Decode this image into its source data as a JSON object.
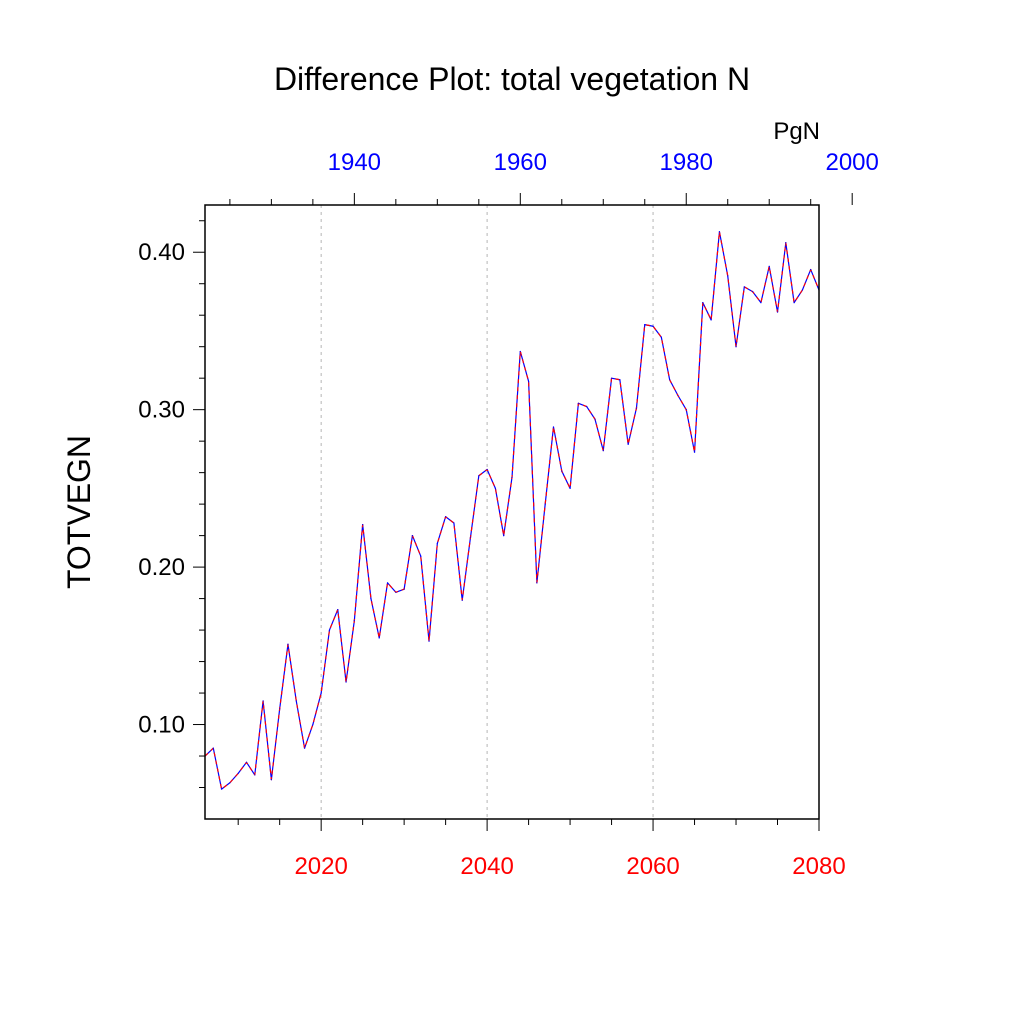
{
  "chart_data": {
    "type": "line",
    "title": "Difference Plot: total vegetation N",
    "ylabel": "TOTVEGN",
    "units": "PgN",
    "xlim": [
      2006,
      2080
    ],
    "ylim": [
      0.04,
      0.43
    ],
    "bottom_axis": {
      "ticks": [
        2020,
        2040,
        2060,
        2080
      ],
      "labels": [
        "2020",
        "2040",
        "2060",
        "2080"
      ],
      "color": "#ff0000"
    },
    "top_axis": {
      "offset_years": 84,
      "ticks": [
        1940,
        1960,
        1980,
        2000
      ],
      "labels": [
        "1940",
        "1960",
        "1980",
        "2000"
      ],
      "color": "#0000ff"
    },
    "y_ticks": [
      0.1,
      0.2,
      0.3,
      0.4
    ],
    "y_tick_labels": [
      "0.10",
      "0.20",
      "0.30",
      "0.40"
    ],
    "grid": "vertical dotted at major bottom ticks",
    "series": [
      {
        "color_primary": "#0000ff",
        "color_dash": "#ff0000",
        "x": [
          2006,
          2007,
          2008,
          2009,
          2010,
          2011,
          2012,
          2013,
          2014,
          2015,
          2016,
          2017,
          2018,
          2019,
          2020,
          2021,
          2022,
          2023,
          2024,
          2025,
          2026,
          2027,
          2028,
          2029,
          2030,
          2031,
          2032,
          2033,
          2034,
          2035,
          2036,
          2037,
          2038,
          2039,
          2040,
          2041,
          2042,
          2043,
          2044,
          2045,
          2046,
          2047,
          2048,
          2049,
          2050,
          2051,
          2052,
          2053,
          2054,
          2055,
          2056,
          2057,
          2058,
          2059,
          2060,
          2061,
          2062,
          2063,
          2064,
          2065,
          2066,
          2067,
          2068,
          2069,
          2070,
          2071,
          2072,
          2073,
          2074,
          2075,
          2076,
          2077,
          2078,
          2079,
          2080
        ],
        "y": [
          0.08,
          0.085,
          0.059,
          0.063,
          0.069,
          0.076,
          0.068,
          0.115,
          0.065,
          0.11,
          0.151,
          0.115,
          0.085,
          0.1,
          0.12,
          0.16,
          0.173,
          0.127,
          0.166,
          0.227,
          0.18,
          0.155,
          0.19,
          0.184,
          0.186,
          0.22,
          0.207,
          0.153,
          0.215,
          0.232,
          0.228,
          0.179,
          0.219,
          0.258,
          0.262,
          0.25,
          0.22,
          0.257,
          0.337,
          0.318,
          0.19,
          0.24,
          0.289,
          0.261,
          0.25,
          0.304,
          0.302,
          0.294,
          0.274,
          0.32,
          0.319,
          0.278,
          0.301,
          0.354,
          0.353,
          0.346,
          0.319,
          0.309,
          0.3,
          0.273,
          0.368,
          0.357,
          0.413,
          0.385,
          0.34,
          0.378,
          0.375,
          0.368,
          0.391,
          0.362,
          0.406,
          0.368,
          0.376,
          0.389,
          0.376
        ]
      }
    ]
  }
}
